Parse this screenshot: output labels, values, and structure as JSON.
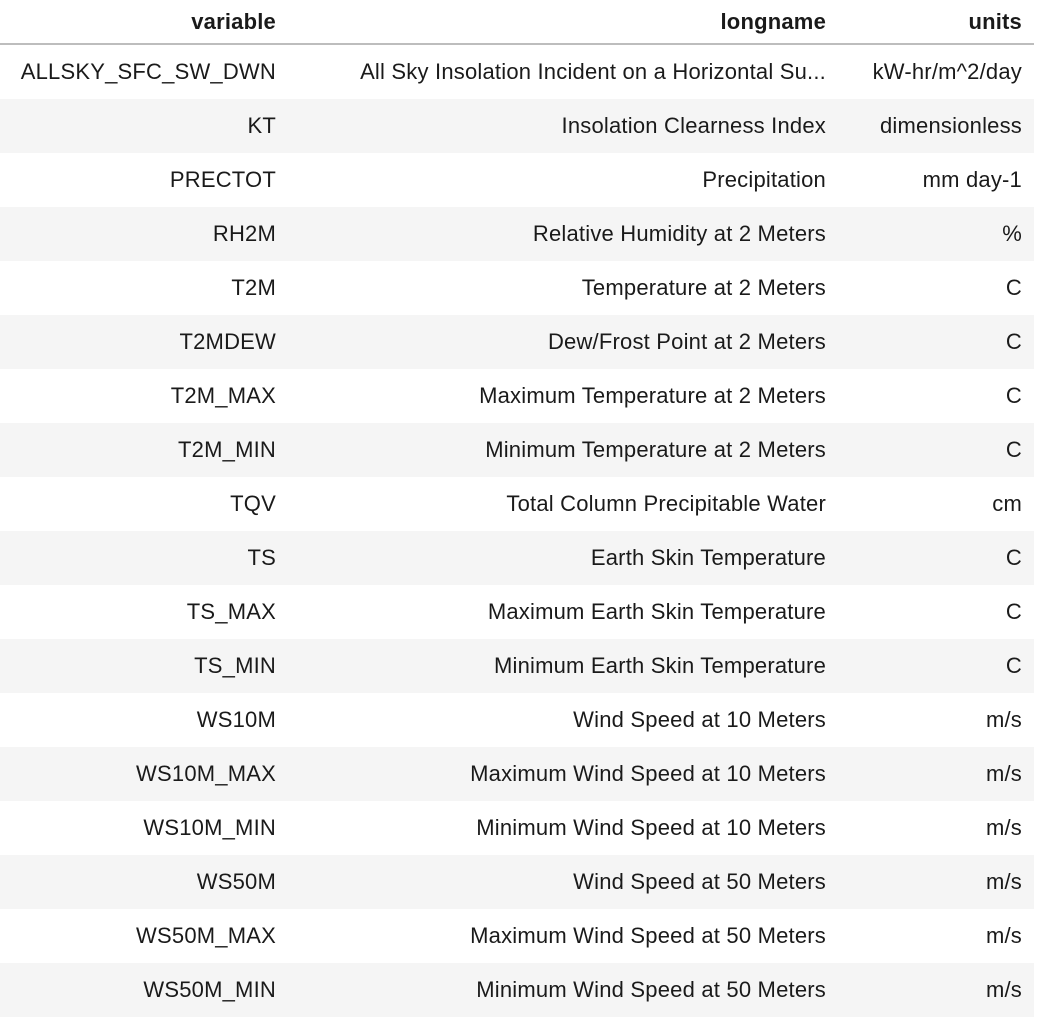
{
  "table": {
    "columns": [
      "variable",
      "longname",
      "units"
    ],
    "rows": [
      [
        "ALLSKY_SFC_SW_DWN",
        "All Sky Insolation Incident on a Horizontal Su...",
        "kW-hr/m^2/day"
      ],
      [
        "KT",
        "Insolation Clearness Index",
        "dimensionless"
      ],
      [
        "PRECTOT",
        "Precipitation",
        "mm day-1"
      ],
      [
        "RH2M",
        "Relative Humidity at 2 Meters",
        "%"
      ],
      [
        "T2M",
        "Temperature at 2 Meters",
        "C"
      ],
      [
        "T2MDEW",
        "Dew/Frost Point at 2 Meters",
        "C"
      ],
      [
        "T2M_MAX",
        "Maximum Temperature at 2 Meters",
        "C"
      ],
      [
        "T2M_MIN",
        "Minimum Temperature at 2 Meters",
        "C"
      ],
      [
        "TQV",
        "Total Column Precipitable Water",
        "cm"
      ],
      [
        "TS",
        "Earth Skin Temperature",
        "C"
      ],
      [
        "TS_MAX",
        "Maximum Earth Skin Temperature",
        "C"
      ],
      [
        "TS_MIN",
        "Minimum Earth Skin Temperature",
        "C"
      ],
      [
        "WS10M",
        "Wind Speed at 10 Meters",
        "m/s"
      ],
      [
        "WS10M_MAX",
        "Maximum Wind Speed at 10 Meters",
        "m/s"
      ],
      [
        "WS10M_MIN",
        "Minimum Wind Speed at 10 Meters",
        "m/s"
      ],
      [
        "WS50M",
        "Wind Speed at 50 Meters",
        "m/s"
      ],
      [
        "WS50M_MAX",
        "Maximum Wind Speed at 50 Meters",
        "m/s"
      ],
      [
        "WS50M_MIN",
        "Minimum Wind Speed at 50 Meters",
        "m/s"
      ]
    ]
  },
  "colors": {
    "row_stripe": "#f5f5f5",
    "header_rule": "#bdbdbd",
    "text": "#1a1a1a"
  }
}
